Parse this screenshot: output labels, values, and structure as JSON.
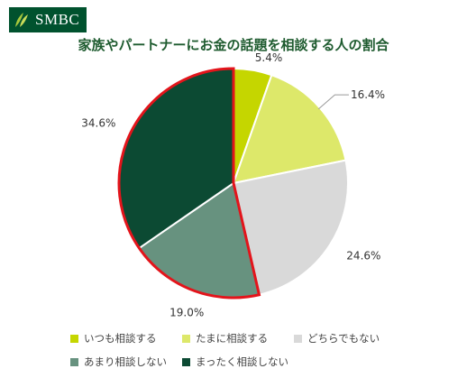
{
  "brand": {
    "name": "SMBC",
    "color": "#00522e"
  },
  "chart_data": {
    "type": "pie",
    "title": "家族やパートナーにお金の話題を相談する人の割合",
    "slices": [
      {
        "label": "いつも相談する",
        "value": 5.4,
        "display": "5.4%",
        "color": "#c5d600"
      },
      {
        "label": "たまに相談する",
        "value": 16.4,
        "display": "16.4%",
        "color": "#dde86a"
      },
      {
        "label": "どちらでもない",
        "value": 24.6,
        "display": "24.6%",
        "color": "#d9d9d9"
      },
      {
        "label": "あまり相談しない",
        "value": 19.0,
        "display": "19.0%",
        "color": "#67927f"
      },
      {
        "label": "まったく相談しない",
        "value": 34.6,
        "display": "34.6%",
        "color": "#0c4a33"
      }
    ],
    "highlight_color": "#e3141b",
    "legend_position": "bottom"
  }
}
